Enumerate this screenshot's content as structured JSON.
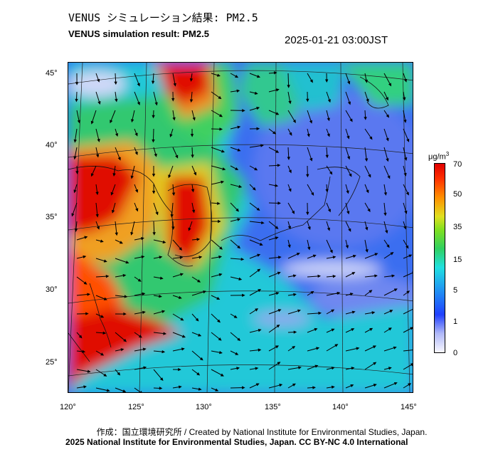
{
  "header": {
    "title_ja": "VENUS シミュレーション結果: PM2.5",
    "title_en": "VENUS simulation result: PM2.5",
    "timestamp": "2025-01-21 03:00JST"
  },
  "map": {
    "lon_labels": [
      "120°",
      "125°",
      "130°",
      "135°",
      "140°",
      "145°"
    ],
    "lat_labels": [
      "45°",
      "40°",
      "35°",
      "30°",
      "25°"
    ],
    "field": "PM2.5 concentration with wind vectors"
  },
  "colorbar": {
    "unit_prefix": "μg/m",
    "unit_sup": "3",
    "levels": [
      "70",
      "50",
      "35",
      "15",
      "5",
      "1",
      "0"
    ],
    "colors": [
      "#f5f5ff",
      "#2040ff",
      "#20e0f0",
      "#30d060",
      "#e0e020",
      "#ff7000",
      "#e00000"
    ]
  },
  "footer": {
    "credit": "作成：国立環境研究所 / Created by National Institute for Environmental Studies, Japan.",
    "copyright": "2025 National Institute for Environmental Studies, Japan. CC BY-NC 4.0 International"
  }
}
